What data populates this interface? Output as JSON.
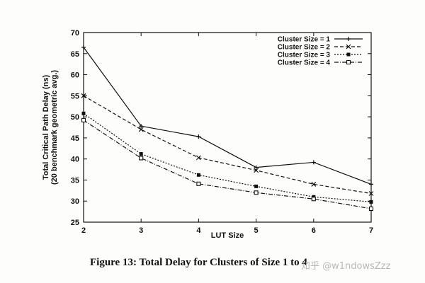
{
  "chart_data": {
    "type": "line",
    "title": "",
    "xlabel": "LUT Size",
    "ylabel_lines": [
      "Total Critical Path Delay (ns)",
      "(20 benchmark geometric avg.)"
    ],
    "x": [
      2,
      3,
      4,
      5,
      6,
      7
    ],
    "xlim": [
      2,
      7
    ],
    "ylim": [
      25,
      70
    ],
    "xticks": [
      "2",
      "3",
      "4",
      "5",
      "6",
      "7"
    ],
    "yticks": [
      "25",
      "30",
      "35",
      "40",
      "45",
      "50",
      "55",
      "60",
      "65",
      "70"
    ],
    "legend_position": "top-right",
    "series": [
      {
        "name": "Cluster Size = 1",
        "values": [
          66.5,
          47.8,
          45.3,
          38.0,
          39.2,
          34.0
        ],
        "marker": "plus",
        "dash": ""
      },
      {
        "name": "Cluster Size = 2",
        "values": [
          55.0,
          47.0,
          40.3,
          37.3,
          34.0,
          31.8
        ],
        "marker": "cross",
        "dash": "5,3"
      },
      {
        "name": "Cluster Size = 3",
        "values": [
          50.8,
          41.2,
          36.2,
          33.5,
          31.0,
          29.8
        ],
        "marker": "square-filled",
        "dash": "2,2"
      },
      {
        "name": "Cluster Size = 4",
        "values": [
          49.2,
          40.2,
          34.1,
          32.0,
          30.5,
          28.2
        ],
        "marker": "square-open",
        "dash": "6,2,1,2"
      }
    ]
  },
  "caption": "Figure 13: Total Delay for Clusters of Size 1 to 4",
  "watermark": "知乎 @w1ndowsZzz"
}
